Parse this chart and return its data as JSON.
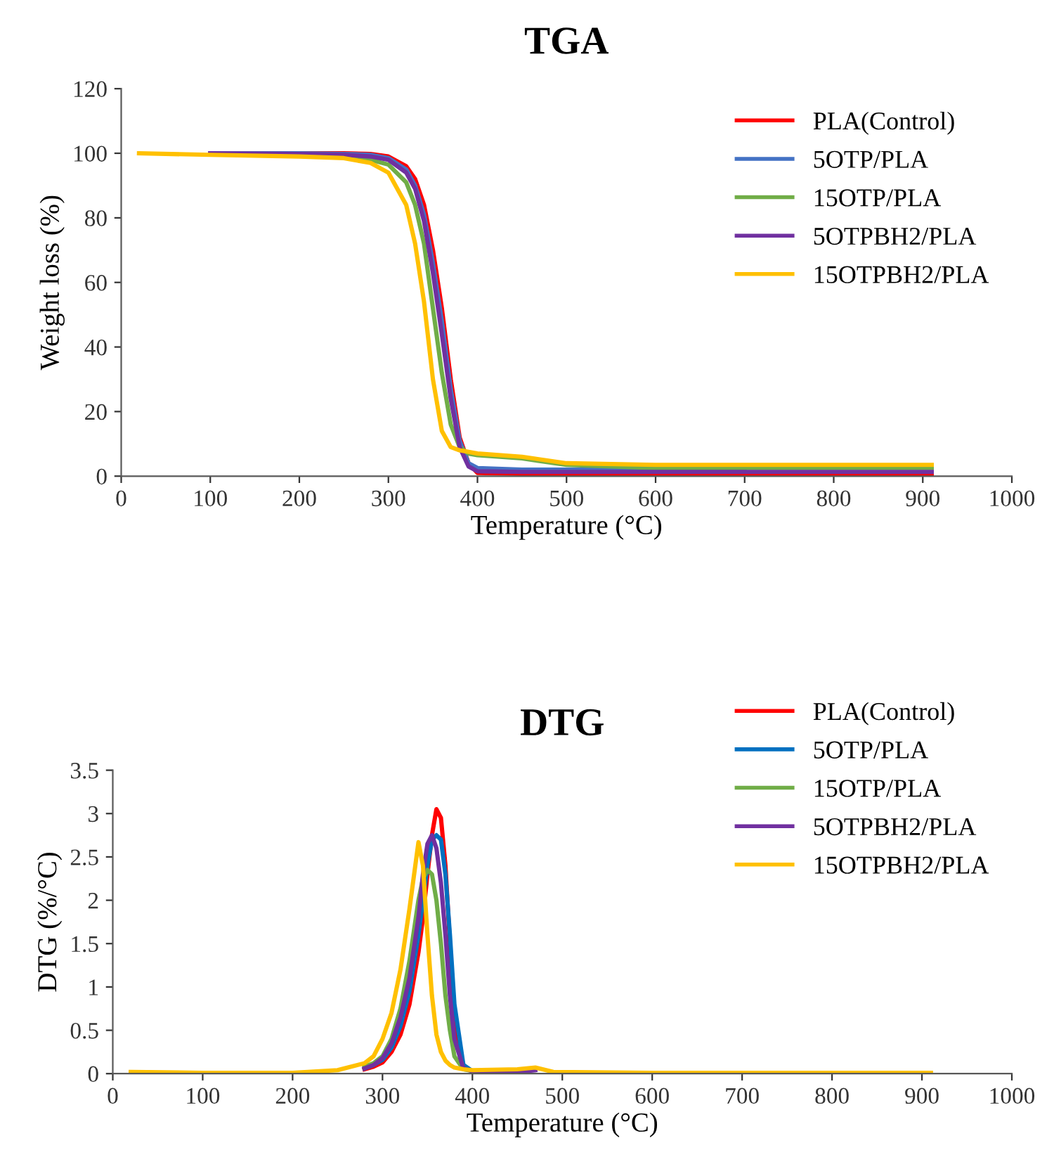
{
  "chart_data": [
    {
      "type": "line",
      "title": "TGA",
      "xlabel": "Temperature (°C)",
      "ylabel": "Weight loss (%)",
      "xlim": [
        0,
        1000
      ],
      "xticks": [
        0,
        100,
        200,
        300,
        400,
        500,
        600,
        700,
        800,
        900,
        1000
      ],
      "ylim": [
        0,
        120
      ],
      "yticks": [
        0,
        20,
        40,
        60,
        80,
        100,
        120
      ],
      "grid": false,
      "legend": "top right",
      "marker": "none",
      "line_style": "solid",
      "x": [
        20,
        100,
        200,
        250,
        280,
        300,
        320,
        330,
        340,
        350,
        360,
        370,
        380,
        390,
        400,
        450,
        500,
        600,
        700,
        800,
        910
      ],
      "series": [
        {
          "name": "PLA(Control)",
          "color": "#ff0000",
          "values": [
            null,
            null,
            100,
            100,
            99.8,
            99,
            96,
            92,
            84,
            70,
            52,
            30,
            12,
            4,
            1,
            0.7,
            0.6,
            0.5,
            0.5,
            0.5,
            0.5
          ]
        },
        {
          "name": "5OTP/PLA",
          "color": "#4472c4",
          "values": [
            null,
            100,
            100,
            99.8,
            99.5,
            98.5,
            95,
            90,
            81,
            66,
            48,
            27,
            11,
            4,
            2.5,
            2,
            2,
            2,
            2,
            null,
            null
          ]
        },
        {
          "name": "15OTP/PLA",
          "color": "#70ad47",
          "values": [
            null,
            null,
            99.5,
            99,
            98,
            96.5,
            91,
            84,
            72,
            52,
            32,
            16,
            9,
            7,
            6.5,
            5.5,
            3.5,
            2.5,
            2.5,
            2.5,
            2.5
          ]
        },
        {
          "name": "5OTPBH2/PLA",
          "color": "#7030a0",
          "values": [
            null,
            100,
            99.8,
            99.5,
            99,
            98,
            94,
            89,
            79,
            63,
            44,
            24,
            9,
            3,
            1.5,
            1.3,
            1.3,
            1.3,
            1.3,
            1.3,
            1.3
          ]
        },
        {
          "name": "15OTPBH2/PLA",
          "color": "#ffc000",
          "values": [
            100,
            99.5,
            99,
            98.5,
            97,
            94,
            84,
            72,
            54,
            30,
            14,
            9,
            8,
            7.5,
            7,
            6,
            4,
            3.5,
            3.5,
            3.5,
            3.5
          ]
        }
      ]
    },
    {
      "type": "line",
      "title": "DTG",
      "xlabel": "Temperature (°C)",
      "ylabel": "DTG (%/°C)",
      "xlim": [
        0,
        1000
      ],
      "xticks": [
        0,
        100,
        200,
        300,
        400,
        500,
        600,
        700,
        800,
        900,
        1000
      ],
      "ylim": [
        0,
        3.5
      ],
      "yticks": [
        0,
        0.5,
        1,
        1.5,
        2,
        2.5,
        3,
        3.5
      ],
      "grid": false,
      "legend": "top right",
      "marker": "none",
      "line_style": "solid",
      "x": [
        20,
        100,
        200,
        250,
        280,
        290,
        300,
        310,
        320,
        330,
        340,
        345,
        350,
        355,
        360,
        365,
        370,
        375,
        380,
        390,
        400,
        450,
        470,
        490,
        600,
        700,
        910
      ],
      "series": [
        {
          "name": "PLA(Control)",
          "color": "#ff0000",
          "values": [
            null,
            null,
            null,
            null,
            0.05,
            0.08,
            0.13,
            0.25,
            0.45,
            0.8,
            1.4,
            1.8,
            2.3,
            2.75,
            3.05,
            2.95,
            2.4,
            1.5,
            0.6,
            0.08,
            0.03,
            null,
            null,
            null,
            null,
            null,
            null
          ]
        },
        {
          "name": "5OTP/PLA",
          "color": "#0070c0",
          "values": [
            null,
            null,
            null,
            null,
            0.06,
            0.1,
            0.16,
            0.3,
            0.55,
            0.95,
            1.6,
            2.0,
            2.4,
            2.7,
            2.75,
            2.7,
            2.3,
            1.6,
            0.8,
            0.1,
            0.03,
            null,
            null,
            null,
            null,
            null,
            null
          ]
        },
        {
          "name": "15OTP/PLA",
          "color": "#70ad47",
          "values": [
            null,
            null,
            null,
            null,
            0.08,
            0.12,
            0.2,
            0.4,
            0.75,
            1.3,
            2.0,
            2.25,
            2.35,
            2.3,
            2.0,
            1.5,
            0.9,
            0.5,
            0.2,
            0.05,
            0.03,
            null,
            null,
            null,
            null,
            null,
            null
          ]
        },
        {
          "name": "5OTPBH2/PLA",
          "color": "#7030a0",
          "values": [
            null,
            null,
            null,
            null,
            0.06,
            0.1,
            0.18,
            0.35,
            0.65,
            1.1,
            1.8,
            2.3,
            2.65,
            2.75,
            2.6,
            2.2,
            1.6,
            0.9,
            0.4,
            0.06,
            0.03,
            0.02,
            0.04,
            null,
            null,
            null,
            null
          ]
        },
        {
          "name": "15OTPBH2/PLA",
          "color": "#ffc000",
          "values": [
            0.02,
            0.01,
            0.01,
            0.04,
            0.12,
            0.2,
            0.4,
            0.7,
            1.2,
            1.9,
            2.67,
            2.4,
            1.6,
            0.9,
            0.45,
            0.25,
            0.15,
            0.1,
            0.07,
            0.05,
            0.04,
            0.05,
            0.07,
            0.02,
            0.01,
            0.01,
            0.01
          ]
        }
      ]
    }
  ]
}
